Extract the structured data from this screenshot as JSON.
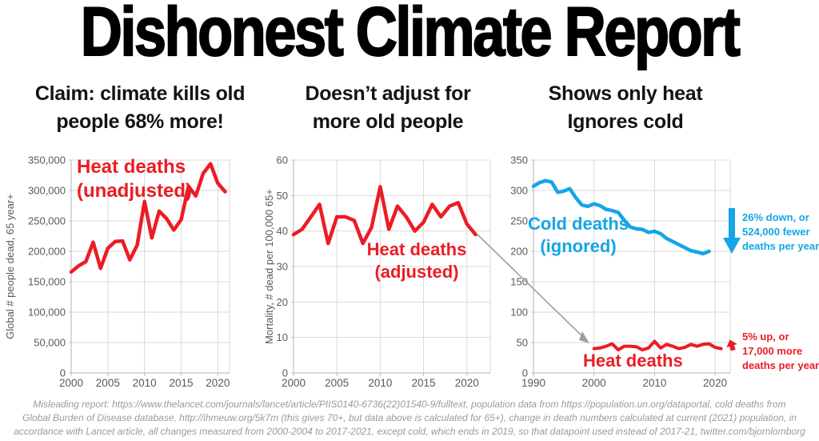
{
  "title": "Dishonest Climate Report",
  "colors": {
    "red": "#ec1c24",
    "blue": "#15a5e8",
    "grid": "#d9d9d9",
    "axis": "#bfbfbf",
    "tick_text": "#595959",
    "arrow_gray": "#9e9e9e",
    "footer_text": "#9b9b9b"
  },
  "panels": [
    {
      "heading_line1": "Claim: climate kills old",
      "heading_line2": "people 68% more!"
    },
    {
      "heading_line1": "Doesn’t adjust for",
      "heading_line2": "more old people"
    },
    {
      "heading_line1": "Shows only heat",
      "heading_line2": "Ignores cold"
    }
  ],
  "chart_data": [
    {
      "type": "line",
      "title": "Claim: climate kills old people 68% more!",
      "ylabel": "Global # people dead, 65 year+",
      "ylim": [
        0,
        350000
      ],
      "ytick_values": [
        0,
        50000,
        100000,
        150000,
        200000,
        250000,
        300000,
        350000
      ],
      "ytick_labels": [
        "0",
        "50,000",
        "100,000",
        "150,000",
        "200,000",
        "250,000",
        "300,000",
        "350,000"
      ],
      "xlim": [
        2000,
        2021.6
      ],
      "xticks": [
        2000,
        2005,
        2010,
        2015,
        2020
      ],
      "grid": true,
      "series": [
        {
          "name": "Heat deaths (unadjusted)",
          "color": "#ec1c24",
          "width": 4.5,
          "x": [
            2000,
            2001,
            2002,
            2003,
            2004,
            2005,
            2006,
            2007,
            2008,
            2009,
            2010,
            2011,
            2012,
            2013,
            2014,
            2015,
            2016,
            2017,
            2018,
            2019,
            2020,
            2021
          ],
          "values": [
            166000,
            176000,
            183000,
            215000,
            172000,
            205000,
            216000,
            217000,
            186000,
            210000,
            282000,
            222000,
            266000,
            254000,
            235000,
            252000,
            307000,
            291000,
            328000,
            344000,
            312000,
            298000
          ]
        }
      ]
    },
    {
      "type": "line",
      "title": "Doesn’t adjust for more old people",
      "ylabel": "Mortality, # dead per 100,000 65+",
      "ylim": [
        0,
        60
      ],
      "ytick_values": [
        0,
        10,
        20,
        30,
        40,
        50,
        60
      ],
      "ytick_labels": [
        "0",
        "10",
        "20",
        "30",
        "40",
        "50",
        "60"
      ],
      "xlim": [
        2000,
        2022.7
      ],
      "xticks": [
        2000,
        2005,
        2010,
        2015,
        2020
      ],
      "grid": true,
      "series": [
        {
          "name": "Heat deaths (adjusted)",
          "color": "#ec1c24",
          "width": 4.5,
          "x": [
            2000,
            2001,
            2002,
            2003,
            2004,
            2005,
            2006,
            2007,
            2008,
            2009,
            2010,
            2011,
            2012,
            2013,
            2014,
            2015,
            2016,
            2017,
            2018,
            2019,
            2020,
            2021
          ],
          "values": [
            39,
            40.5,
            44,
            47.5,
            36.5,
            44,
            44,
            43,
            36.5,
            41,
            52.5,
            40.5,
            47,
            44,
            40,
            42.5,
            47.5,
            44,
            47,
            48,
            42,
            39
          ]
        }
      ]
    },
    {
      "type": "line",
      "title": "Shows only heat, ignores cold (deaths in thousands)",
      "ylabel": "",
      "ylim": [
        0,
        350
      ],
      "ytick_values": [
        0,
        50,
        100,
        150,
        200,
        250,
        300,
        350
      ],
      "ytick_labels": [
        "0",
        "50",
        "100",
        "150",
        "200",
        "250",
        "300",
        "350"
      ],
      "xlim": [
        1990,
        2022.5
      ],
      "xticks": [
        1990,
        2000,
        2010,
        2020
      ],
      "grid": true,
      "series": [
        {
          "name": "Cold deaths (ignored)",
          "color": "#15a5e8",
          "width": 4.5,
          "x": [
            1990,
            1991,
            1992,
            1993,
            1994,
            1995,
            1996,
            1997,
            1998,
            1999,
            2000,
            2001,
            2002,
            2003,
            2004,
            2005,
            2006,
            2007,
            2008,
            2009,
            2010,
            2011,
            2012,
            2013,
            2014,
            2015,
            2016,
            2017,
            2018,
            2019
          ],
          "values": [
            307,
            313,
            316,
            314,
            297,
            299,
            303,
            288,
            276,
            274,
            278,
            275,
            269,
            267,
            264,
            251,
            240,
            237,
            236,
            231,
            233,
            229,
            221,
            216,
            211,
            206,
            201,
            199,
            196,
            200
          ]
        },
        {
          "name": "Heat deaths",
          "color": "#ec1c24",
          "width": 4,
          "x": [
            2000,
            2001,
            2002,
            2003,
            2004,
            2005,
            2006,
            2007,
            2008,
            2009,
            2010,
            2011,
            2012,
            2013,
            2014,
            2015,
            2016,
            2017,
            2018,
            2019,
            2020,
            2021
          ],
          "values": [
            40,
            41,
            44,
            48,
            38,
            44,
            44,
            43,
            38,
            41,
            52,
            41,
            47,
            44,
            40,
            42,
            47,
            44,
            47,
            48,
            42,
            40
          ]
        }
      ]
    }
  ],
  "labels": {
    "chart1": {
      "line1": "Heat deaths",
      "line2": "(unadjusted)"
    },
    "chart2": {
      "line1": "Heat deaths",
      "line2": "(adjusted)"
    },
    "chart3_cold": {
      "line1": "Cold deaths",
      "line2": "(ignored)"
    },
    "chart3_heat": {
      "line1": "Heat deaths"
    }
  },
  "annotations": {
    "cold": {
      "line1": "26% down, or",
      "line2": "524,000 fewer",
      "line3": "deaths per year"
    },
    "heat": {
      "line1": "5% up, or",
      "line2": "17,000 more",
      "line3": "deaths per year"
    }
  },
  "footer": {
    "line1": "Misleading report: https://www.thelancet.com/journals/lancet/article/PIIS0140-6736(22)01540-9/fulltext, population data from https://population.un.org/dataportal, cold deaths from",
    "line2": "Global Burden of Disease database, http://ihmeuw.org/5k7m (this gives 70+, but data above is calculated for 65+), change in death numbers calculated at current (2021) population, in",
    "line3": "accordance with Lancet article, all changes measured from 2000-2004 to 2017-2021, except cold, which ends in 2019, so that datapoint used instead of 2017-21, twitter.com/bjornlomborg"
  }
}
